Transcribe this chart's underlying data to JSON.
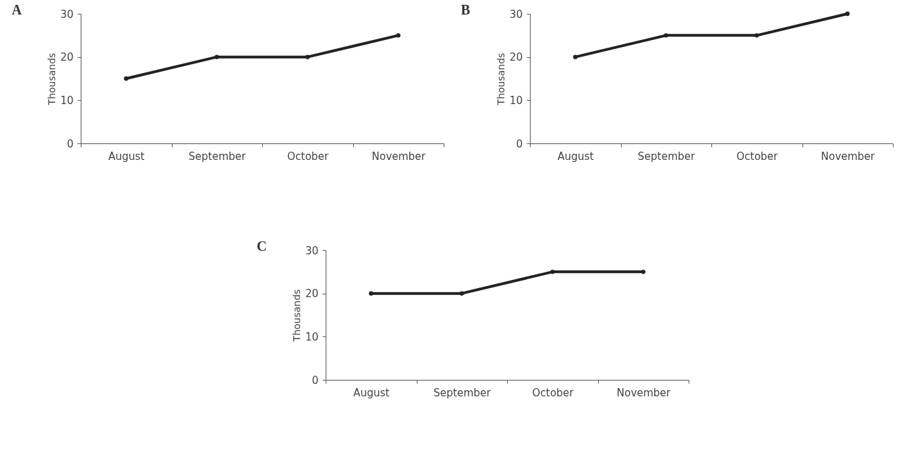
{
  "chart_data": [
    {
      "type": "line",
      "title": "A",
      "ylabel": "Thousands",
      "categories": [
        "August",
        "September",
        "October",
        "November"
      ],
      "series": [
        {
          "color": "#222222",
          "values": [
            15,
            20,
            20,
            25
          ]
        }
      ],
      "ylim": [
        0,
        30
      ],
      "yticks": [
        0,
        10,
        20,
        30
      ],
      "marker": "circle",
      "grid": false
    },
    {
      "type": "line",
      "title": "B",
      "ylabel": "Thousands",
      "categories": [
        "August",
        "September",
        "October",
        "November"
      ],
      "series": [
        {
          "color": "#222222",
          "values": [
            20,
            25,
            25,
            30
          ]
        }
      ],
      "ylim": [
        0,
        30
      ],
      "yticks": [
        0,
        10,
        20,
        30
      ],
      "marker": "circle",
      "grid": false
    },
    {
      "type": "line",
      "title": "C",
      "ylabel": "Thousands",
      "categories": [
        "August",
        "September",
        "October",
        "November"
      ],
      "series": [
        {
          "color": "#222222",
          "values": [
            20,
            20,
            25,
            25
          ]
        }
      ],
      "ylim": [
        0,
        30
      ],
      "yticks": [
        0,
        10,
        20,
        30
      ],
      "marker": "circle",
      "grid": false
    }
  ]
}
